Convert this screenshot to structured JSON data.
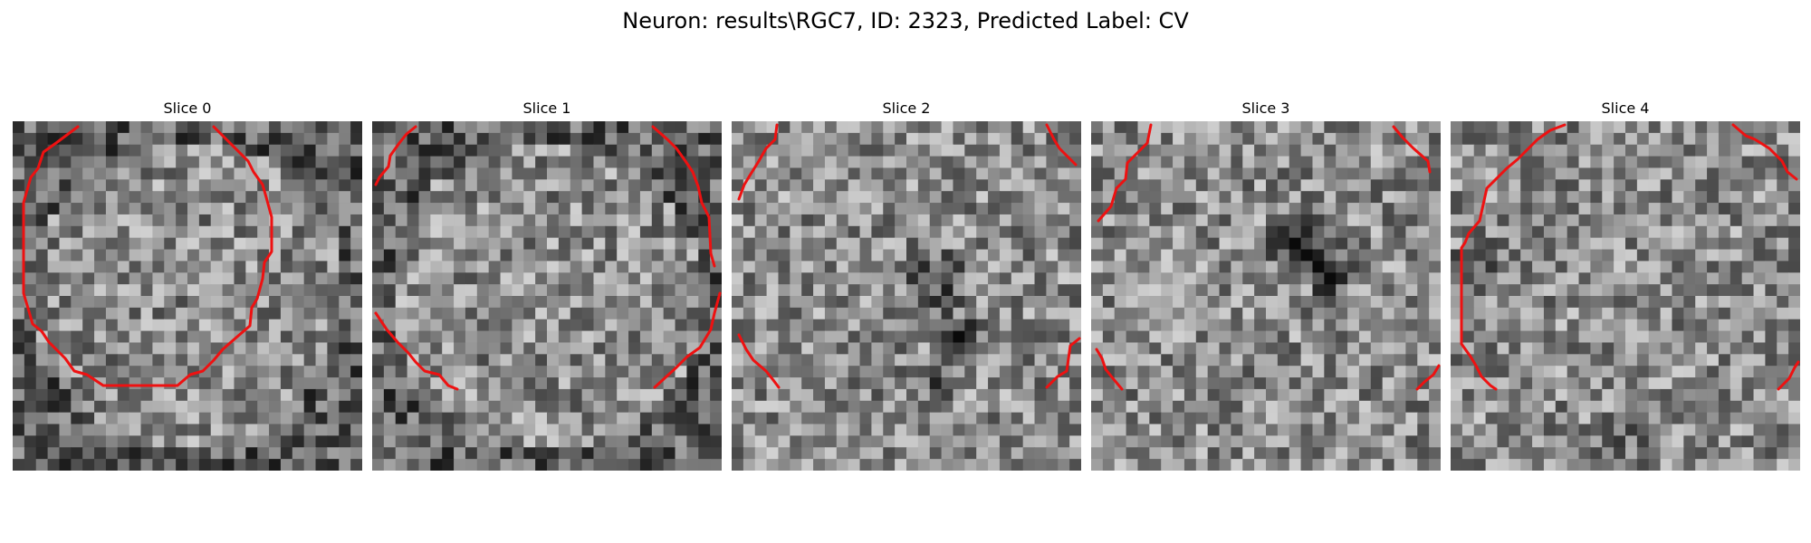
{
  "figure": {
    "title": "Neuron: results\\RGC7, ID: 2323, Predicted Label: CV"
  },
  "slices": [
    {
      "title": "Slice 0"
    },
    {
      "title": "Slice 1"
    },
    {
      "title": "Slice 2"
    },
    {
      "title": "Slice 3"
    },
    {
      "title": "Slice 4"
    }
  ],
  "colors": {
    "contour": "#ee1111",
    "background": "#ffffff"
  }
}
